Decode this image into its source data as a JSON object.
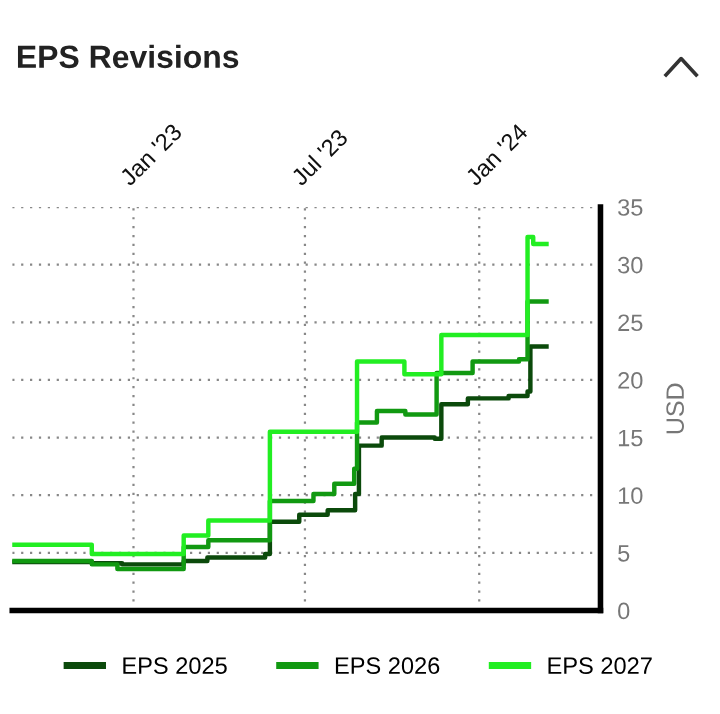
{
  "chart_data": {
    "type": "step",
    "title": "EPS Revisions",
    "ylabel": "USD",
    "xlim": [
      "2022-08-26",
      "2024-05-08"
    ],
    "xticks": [
      {
        "value": "2023-01-01",
        "label": "Jan '23"
      },
      {
        "value": "2023-07-01",
        "label": "Jul '23"
      },
      {
        "value": "2024-01-01",
        "label": "Jan '24"
      }
    ],
    "ylim": [
      0,
      35
    ],
    "yticks": [
      0,
      5,
      10,
      15,
      20,
      25,
      30,
      35
    ],
    "grid": true,
    "legend": "bottom",
    "line_style": "solid",
    "marker": "none",
    "series": [
      {
        "name": "EPS 2025",
        "color": "#0b4a0b",
        "x": [
          "2022-08-26",
          "2022-11-18",
          "2022-12-20",
          "2023-02-23",
          "2023-03-20",
          "2023-05-20",
          "2023-05-25",
          "2023-06-25",
          "2023-07-25",
          "2023-08-23",
          "2023-08-27",
          "2023-09-20",
          "2023-11-15",
          "2023-11-22",
          "2023-12-20",
          "2024-02-01",
          "2024-02-21",
          "2024-02-24",
          "2024-03-12"
        ],
        "values": [
          4.2,
          4.1,
          4.0,
          4.3,
          4.6,
          4.9,
          7.7,
          8.3,
          8.7,
          10.1,
          14.3,
          15.0,
          14.9,
          17.9,
          18.4,
          18.6,
          19.0,
          22.9,
          22.9
        ]
      },
      {
        "name": "EPS 2026",
        "color": "#119911",
        "x": [
          "2022-08-26",
          "2022-11-18",
          "2022-12-15",
          "2023-02-23",
          "2023-03-21",
          "2023-05-25",
          "2023-07-10",
          "2023-08-01",
          "2023-08-22",
          "2023-08-25",
          "2023-09-15",
          "2023-10-15",
          "2023-11-17",
          "2023-12-25",
          "2024-02-12",
          "2024-02-21",
          "2024-03-12"
        ],
        "values": [
          4.3,
          4.0,
          3.6,
          5.5,
          6.1,
          9.5,
          10.1,
          11.0,
          12.3,
          16.3,
          17.3,
          17.0,
          20.6,
          21.6,
          21.8,
          26.8,
          26.8
        ]
      },
      {
        "name": "EPS 2027",
        "color": "#22ee22",
        "x": [
          "2022-08-26",
          "2022-11-18",
          "2023-02-23",
          "2023-03-21",
          "2023-05-25",
          "2023-08-25",
          "2023-10-14",
          "2023-11-22",
          "2024-02-21",
          "2024-02-27",
          "2024-03-12"
        ],
        "values": [
          5.7,
          4.9,
          6.5,
          7.8,
          15.5,
          21.6,
          20.5,
          23.9,
          32.4,
          31.8,
          31.8
        ]
      }
    ]
  }
}
